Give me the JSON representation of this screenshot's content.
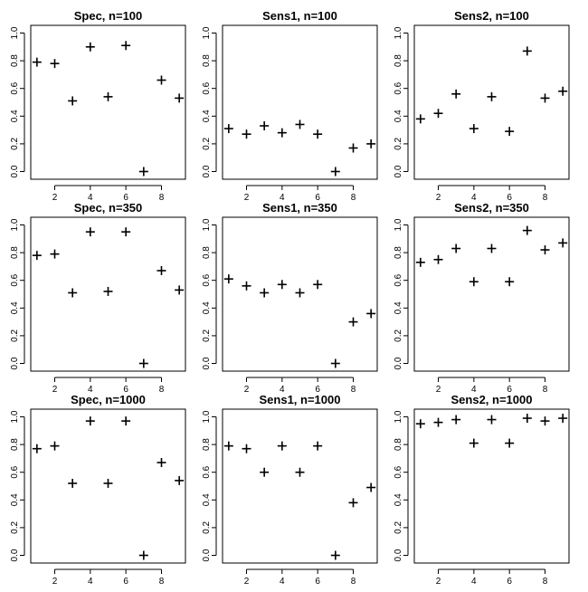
{
  "chart_data": [
    {
      "type": "scatter",
      "title": "Spec, n=100",
      "x": [
        1,
        2,
        3,
        4,
        5,
        6,
        7,
        8,
        9
      ],
      "y": [
        0.79,
        0.78,
        0.51,
        0.9,
        0.54,
        0.91,
        0.0,
        0.66,
        0.53
      ],
      "xlim": [
        1,
        9
      ],
      "ylim": [
        0,
        1
      ],
      "xticks": [
        "2",
        "4",
        "6",
        "8"
      ],
      "yticks": [
        "0.0",
        "0.2",
        "0.4",
        "0.6",
        "0.8",
        "1.0"
      ],
      "xlabel": "",
      "ylabel": ""
    },
    {
      "type": "scatter",
      "title": "Sens1, n=100",
      "x": [
        1,
        2,
        3,
        4,
        5,
        6,
        7,
        8,
        9
      ],
      "y": [
        0.31,
        0.27,
        0.33,
        0.28,
        0.34,
        0.27,
        0.0,
        0.17,
        0.2
      ],
      "xlim": [
        1,
        9
      ],
      "ylim": [
        0,
        1
      ],
      "xticks": [
        "2",
        "4",
        "6",
        "8"
      ],
      "yticks": [
        "0.0",
        "0.2",
        "0.4",
        "0.6",
        "0.8",
        "1.0"
      ],
      "xlabel": "",
      "ylabel": ""
    },
    {
      "type": "scatter",
      "title": "Sens2, n=100",
      "x": [
        1,
        2,
        3,
        4,
        5,
        6,
        7,
        8,
        9
      ],
      "y": [
        0.38,
        0.42,
        0.56,
        0.31,
        0.54,
        0.29,
        0.87,
        0.53,
        0.58
      ],
      "xlim": [
        1,
        9
      ],
      "ylim": [
        0,
        1
      ],
      "xticks": [
        "2",
        "4",
        "6",
        "8"
      ],
      "yticks": [
        "0.0",
        "0.2",
        "0.4",
        "0.6",
        "0.8",
        "1.0"
      ],
      "xlabel": "",
      "ylabel": ""
    },
    {
      "type": "scatter",
      "title": "Spec, n=350",
      "x": [
        1,
        2,
        3,
        4,
        5,
        6,
        7,
        8,
        9
      ],
      "y": [
        0.78,
        0.79,
        0.51,
        0.95,
        0.52,
        0.95,
        0.0,
        0.67,
        0.53
      ],
      "xlim": [
        1,
        9
      ],
      "ylim": [
        0,
        1
      ],
      "xticks": [
        "2",
        "4",
        "6",
        "8"
      ],
      "yticks": [
        "0.0",
        "0.2",
        "0.4",
        "0.6",
        "0.8",
        "1.0"
      ],
      "xlabel": "",
      "ylabel": ""
    },
    {
      "type": "scatter",
      "title": "Sens1, n=350",
      "x": [
        1,
        2,
        3,
        4,
        5,
        6,
        7,
        8,
        9
      ],
      "y": [
        0.61,
        0.56,
        0.51,
        0.57,
        0.51,
        0.57,
        0.0,
        0.3,
        0.36
      ],
      "xlim": [
        1,
        9
      ],
      "ylim": [
        0,
        1
      ],
      "xticks": [
        "2",
        "4",
        "6",
        "8"
      ],
      "yticks": [
        "0.0",
        "0.2",
        "0.4",
        "0.6",
        "0.8",
        "1.0"
      ],
      "xlabel": "",
      "ylabel": ""
    },
    {
      "type": "scatter",
      "title": "Sens2, n=350",
      "x": [
        1,
        2,
        3,
        4,
        5,
        6,
        7,
        8,
        9
      ],
      "y": [
        0.73,
        0.75,
        0.83,
        0.59,
        0.83,
        0.59,
        0.96,
        0.82,
        0.87
      ],
      "xlim": [
        1,
        9
      ],
      "ylim": [
        0,
        1
      ],
      "xticks": [
        "2",
        "4",
        "6",
        "8"
      ],
      "yticks": [
        "0.0",
        "0.2",
        "0.4",
        "0.6",
        "0.8",
        "1.0"
      ],
      "xlabel": "",
      "ylabel": ""
    },
    {
      "type": "scatter",
      "title": "Spec, n=1000",
      "x": [
        1,
        2,
        3,
        4,
        5,
        6,
        7,
        8,
        9
      ],
      "y": [
        0.77,
        0.79,
        0.52,
        0.97,
        0.52,
        0.97,
        0.0,
        0.67,
        0.54
      ],
      "xlim": [
        1,
        9
      ],
      "ylim": [
        0,
        1
      ],
      "xticks": [
        "2",
        "4",
        "6",
        "8"
      ],
      "yticks": [
        "0.0",
        "0.2",
        "0.4",
        "0.6",
        "0.8",
        "1.0"
      ],
      "xlabel": "",
      "ylabel": ""
    },
    {
      "type": "scatter",
      "title": "Sens1, n=1000",
      "x": [
        1,
        2,
        3,
        4,
        5,
        6,
        7,
        8,
        9
      ],
      "y": [
        0.79,
        0.77,
        0.6,
        0.79,
        0.6,
        0.79,
        0.0,
        0.38,
        0.49
      ],
      "xlim": [
        1,
        9
      ],
      "ylim": [
        0,
        1
      ],
      "xticks": [
        "2",
        "4",
        "6",
        "8"
      ],
      "yticks": [
        "0.0",
        "0.2",
        "0.4",
        "0.6",
        "0.8",
        "1.0"
      ],
      "xlabel": "",
      "ylabel": ""
    },
    {
      "type": "scatter",
      "title": "Sens2, n=1000",
      "x": [
        1,
        2,
        3,
        4,
        5,
        6,
        7,
        8,
        9
      ],
      "y": [
        0.95,
        0.96,
        0.98,
        0.81,
        0.98,
        0.81,
        0.99,
        0.97,
        0.99
      ],
      "xlim": [
        1,
        9
      ],
      "ylim": [
        0,
        1
      ],
      "xticks": [
        "2",
        "4",
        "6",
        "8"
      ],
      "yticks": [
        "0.0",
        "0.2",
        "0.4",
        "0.6",
        "0.8",
        "1.0"
      ],
      "xlabel": "",
      "ylabel": ""
    }
  ]
}
